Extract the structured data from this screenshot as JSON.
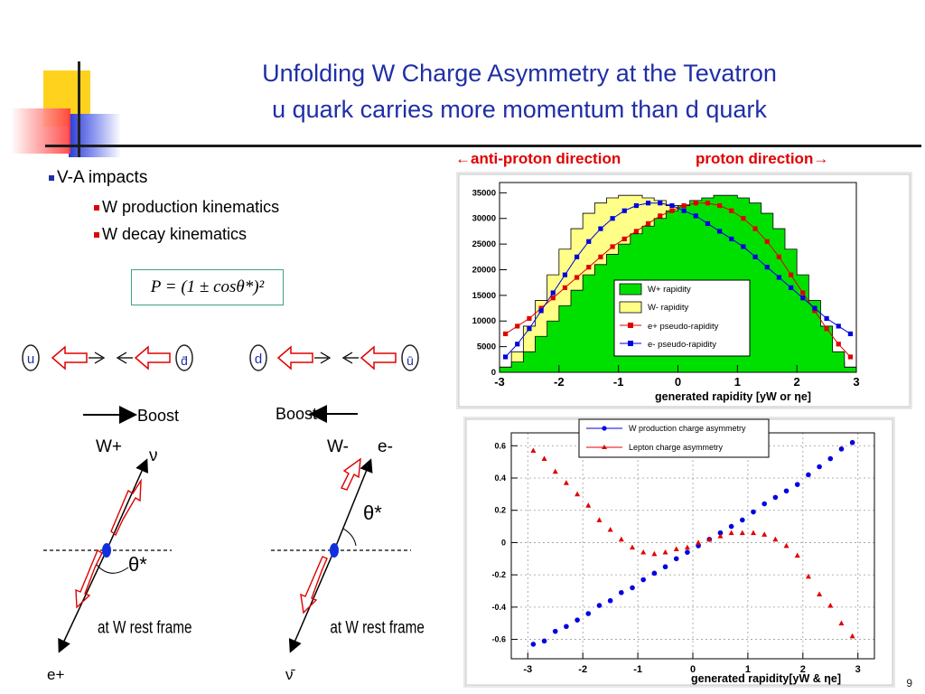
{
  "slide": {
    "title_line1": "Unfolding W Charge Asymmetry at the Tevatron",
    "title_line2": "u quark carries more momentum than d quark",
    "bullet1": "V-A impacts",
    "sub_bullet1": "W production kinematics",
    "sub_bullet2": "W decay kinematics",
    "formula": "P = (1 ± cosθ*)²",
    "page_number": "9",
    "antiproton_label": "←anti-proton direction",
    "proton_label": "proton direction→"
  },
  "diagram": {
    "left": {
      "quark_a": "u",
      "quark_b": "d̄",
      "boost": "Boost",
      "w_label": "W+",
      "top_particle": "ν",
      "bottom_particle": "e+",
      "angle": "θ*",
      "frame": "at W rest frame"
    },
    "right": {
      "quark_a": "d",
      "quark_b": "ū",
      "boost": "Boost",
      "w_label": "W-",
      "top_particle": "e-",
      "bottom_particle": "ν̄",
      "angle": "θ*",
      "frame": "at W rest frame"
    }
  },
  "colors": {
    "title": "#1f2fa6",
    "accent_red": "#e00000",
    "wplus_fill": "#00e000",
    "wminus_fill": "#ffff88",
    "eplus": "#e00000",
    "eminus": "#0000e0"
  },
  "chart_data": [
    {
      "type": "area",
      "xlabel": "generated rapidity [yW or ηe]",
      "xlim": [
        -3,
        3
      ],
      "ylim": [
        0,
        37000
      ],
      "x_ticks": [
        -3,
        -2,
        -1,
        0,
        1,
        2,
        3
      ],
      "y_ticks": [
        0,
        5000,
        10000,
        15000,
        20000,
        25000,
        30000,
        35000
      ],
      "legend_position": "center-right",
      "bin_edges": [
        -3.0,
        -2.8,
        -2.6,
        -2.4,
        -2.2,
        -2.0,
        -1.8,
        -1.6,
        -1.4,
        -1.2,
        -1.0,
        -0.8,
        -0.6,
        -0.4,
        -0.2,
        0.0,
        0.2,
        0.4,
        0.6,
        0.8,
        1.0,
        1.2,
        1.4,
        1.6,
        1.8,
        2.0,
        2.2,
        2.4,
        2.6,
        2.8,
        3.0
      ],
      "series": [
        {
          "name": "W+ rapidity",
          "kind": "hist",
          "values": [
            1000,
            2000,
            4000,
            7000,
            10000,
            13000,
            16000,
            19000,
            21000,
            23000,
            25000,
            27000,
            28500,
            30000,
            31500,
            32500,
            33500,
            34000,
            34500,
            34500,
            34000,
            33000,
            31000,
            28000,
            24000,
            19000,
            14000,
            9000,
            4000,
            1000
          ]
        },
        {
          "name": "W- rapidity",
          "kind": "hist",
          "values": [
            1000,
            4000,
            9000,
            14000,
            19000,
            24000,
            28000,
            31000,
            33000,
            34000,
            34500,
            34500,
            34000,
            33500,
            32500,
            31500,
            30000,
            28500,
            27000,
            25000,
            23000,
            21000,
            19000,
            16000,
            13000,
            10000,
            7000,
            4000,
            2000,
            1000
          ]
        },
        {
          "name": "e+ pseudo-rapidity",
          "kind": "points",
          "x": [
            -2.9,
            -2.7,
            -2.5,
            -2.3,
            -2.1,
            -1.9,
            -1.7,
            -1.5,
            -1.3,
            -1.1,
            -0.9,
            -0.7,
            -0.5,
            -0.3,
            -0.1,
            0.1,
            0.3,
            0.5,
            0.7,
            0.9,
            1.1,
            1.3,
            1.5,
            1.7,
            1.9,
            2.1,
            2.3,
            2.5,
            2.7,
            2.9
          ],
          "values": [
            7500,
            9000,
            10500,
            12500,
            14500,
            16500,
            18500,
            20500,
            22500,
            24500,
            26000,
            27500,
            29000,
            30500,
            31500,
            32500,
            33000,
            33000,
            32500,
            31500,
            30000,
            28000,
            25500,
            22500,
            19000,
            15500,
            12000,
            8500,
            5500,
            3000
          ]
        },
        {
          "name": "e- pseudo-rapidity",
          "kind": "points",
          "x": [
            -2.9,
            -2.7,
            -2.5,
            -2.3,
            -2.1,
            -1.9,
            -1.7,
            -1.5,
            -1.3,
            -1.1,
            -0.9,
            -0.7,
            -0.5,
            -0.3,
            -0.1,
            0.1,
            0.3,
            0.5,
            0.7,
            0.9,
            1.1,
            1.3,
            1.5,
            1.7,
            1.9,
            2.1,
            2.3,
            2.5,
            2.7,
            2.9
          ],
          "values": [
            3000,
            5500,
            8500,
            12000,
            15500,
            19000,
            22500,
            25500,
            28000,
            30000,
            31500,
            32500,
            33000,
            33000,
            32500,
            31500,
            30500,
            29000,
            27500,
            26000,
            24500,
            22500,
            20500,
            18500,
            16500,
            14500,
            12500,
            10500,
            9000,
            7500
          ]
        }
      ]
    },
    {
      "type": "scatter",
      "xlabel": "generated rapidity[yW & ηe]",
      "xlim": [
        -3.3,
        3.3
      ],
      "ylim": [
        -0.72,
        0.68
      ],
      "x_ticks": [
        -3,
        -2,
        -1,
        0,
        1,
        2,
        3
      ],
      "y_ticks": [
        -0.6,
        -0.4,
        -0.2,
        0,
        0.2,
        0.4,
        0.6
      ],
      "legend_position": "top-center",
      "series": [
        {
          "name": "W production charge asymmetry",
          "x": [
            -2.9,
            -2.7,
            -2.5,
            -2.3,
            -2.1,
            -1.9,
            -1.7,
            -1.5,
            -1.3,
            -1.1,
            -0.9,
            -0.7,
            -0.5,
            -0.3,
            -0.1,
            0.1,
            0.3,
            0.5,
            0.7,
            0.9,
            1.1,
            1.3,
            1.5,
            1.7,
            1.9,
            2.1,
            2.3,
            2.5,
            2.7,
            2.9
          ],
          "values": [
            -0.63,
            -0.61,
            -0.55,
            -0.52,
            -0.48,
            -0.44,
            -0.39,
            -0.36,
            -0.31,
            -0.28,
            -0.23,
            -0.19,
            -0.15,
            -0.1,
            -0.06,
            -0.02,
            0.02,
            0.06,
            0.1,
            0.14,
            0.19,
            0.24,
            0.28,
            0.32,
            0.36,
            0.42,
            0.47,
            0.52,
            0.58,
            0.62
          ]
        },
        {
          "name": "Lepton charge asymmetry",
          "x": [
            -2.9,
            -2.7,
            -2.5,
            -2.3,
            -2.1,
            -1.9,
            -1.7,
            -1.5,
            -1.3,
            -1.1,
            -0.9,
            -0.7,
            -0.5,
            -0.3,
            -0.1,
            0.1,
            0.3,
            0.5,
            0.7,
            0.9,
            1.1,
            1.3,
            1.5,
            1.7,
            1.9,
            2.1,
            2.3,
            2.5,
            2.7,
            2.9
          ],
          "values": [
            0.57,
            0.52,
            0.44,
            0.37,
            0.3,
            0.23,
            0.14,
            0.08,
            0.02,
            -0.03,
            -0.06,
            -0.07,
            -0.06,
            -0.04,
            -0.03,
            0.0,
            0.02,
            0.04,
            0.06,
            0.06,
            0.06,
            0.05,
            0.02,
            -0.02,
            -0.08,
            -0.21,
            -0.32,
            -0.39,
            -0.5,
            -0.58
          ]
        }
      ]
    }
  ]
}
